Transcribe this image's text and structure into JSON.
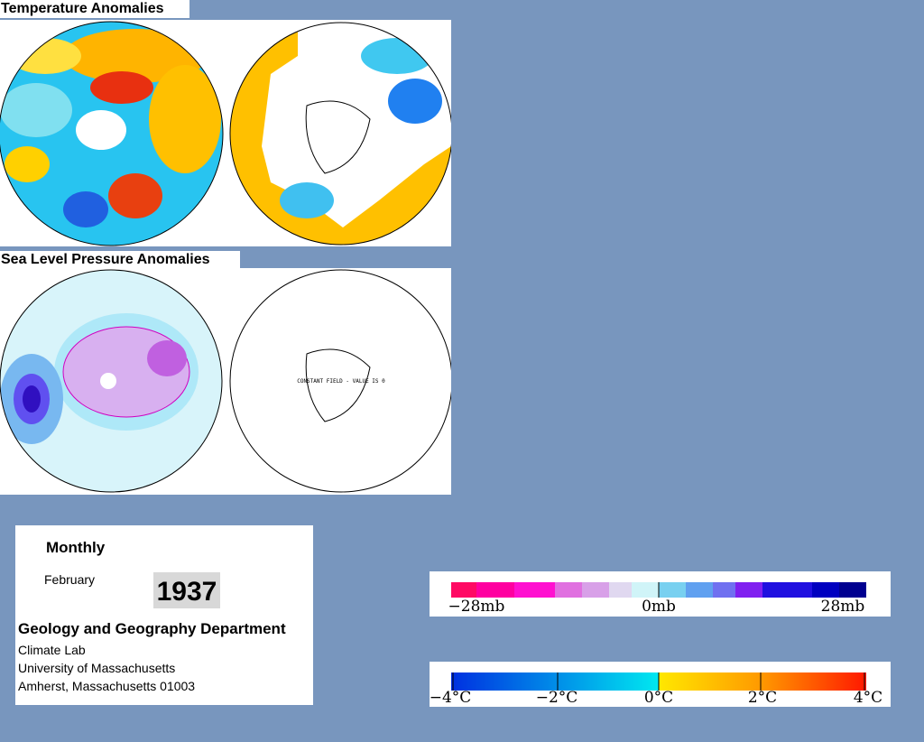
{
  "sections": {
    "temperature": {
      "title": "Temperature Anomalies"
    },
    "pressure": {
      "title": "Sea Level Pressure Anomalies",
      "note": "CONSTANT FIELD - VALUE IS 0"
    }
  },
  "info": {
    "period": "Monthly",
    "month": "February",
    "year": "1937",
    "department": "Geology and Geography Department",
    "lines": [
      "Climate Lab",
      "University of Massachusetts",
      "Amherst, Massachusetts 01003"
    ]
  },
  "legends": {
    "pressure": [
      "−28mb",
      "0mb",
      "28mb"
    ],
    "temperature": [
      "−4°C",
      "−2°C",
      "0°C",
      "2°C",
      "4°C"
    ]
  }
}
